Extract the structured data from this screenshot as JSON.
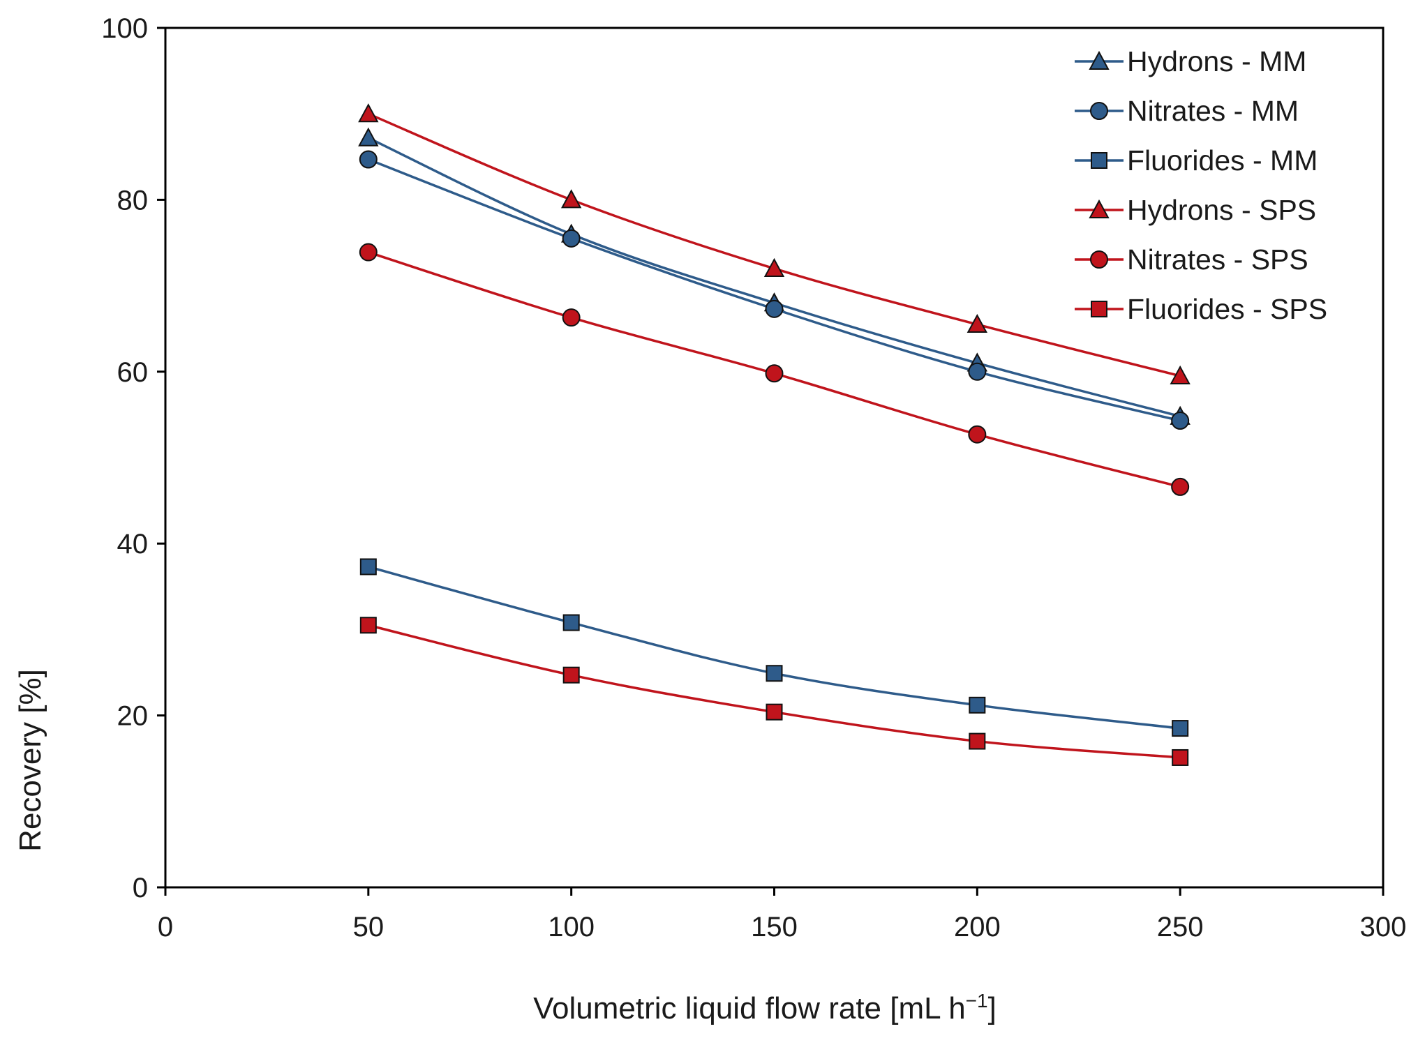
{
  "chart_data": {
    "type": "line",
    "title": "",
    "xlabel": "Volumetric liquid flow rate [mL h",
    "xlabel_superscript": "−1",
    "xlabel_suffix": "]",
    "ylabel": "Recovery [%]",
    "xlim": [
      0,
      300
    ],
    "ylim": [
      0,
      100
    ],
    "x_ticks": [
      0,
      50,
      100,
      150,
      200,
      250,
      300
    ],
    "y_ticks": [
      0,
      20,
      40,
      60,
      80,
      100
    ],
    "grid": false,
    "legend_position": "top-right",
    "x": [
      50,
      100,
      150,
      200,
      250
    ],
    "series": [
      {
        "name": "Hydrons - MM",
        "marker": "triangle",
        "color": "#2e5b8a",
        "values": [
          87.2,
          76.0,
          68.0,
          61.0,
          54.8
        ]
      },
      {
        "name": "Nitrates - MM",
        "marker": "circle",
        "color": "#2e5b8a",
        "values": [
          84.7,
          75.5,
          67.3,
          60.0,
          54.3
        ]
      },
      {
        "name": "Fluorides - MM",
        "marker": "square",
        "color": "#2e5b8a",
        "values": [
          37.3,
          30.8,
          24.9,
          21.2,
          18.5
        ]
      },
      {
        "name": "Hydrons - SPS",
        "marker": "triangle",
        "color": "#c0141c",
        "values": [
          90.0,
          80.0,
          72.0,
          65.5,
          59.5
        ]
      },
      {
        "name": "Nitrates - SPS",
        "marker": "circle",
        "color": "#c0141c",
        "values": [
          73.9,
          66.3,
          59.8,
          52.7,
          46.6
        ]
      },
      {
        "name": "Fluorides - SPS",
        "marker": "square",
        "color": "#c0141c",
        "values": [
          30.5,
          24.7,
          20.4,
          17.0,
          15.1
        ]
      }
    ]
  },
  "colors": {
    "mm_line": "#2e5b8a",
    "sps_line": "#c0141c",
    "marker_outline": "#111111",
    "axis": "#000000"
  }
}
